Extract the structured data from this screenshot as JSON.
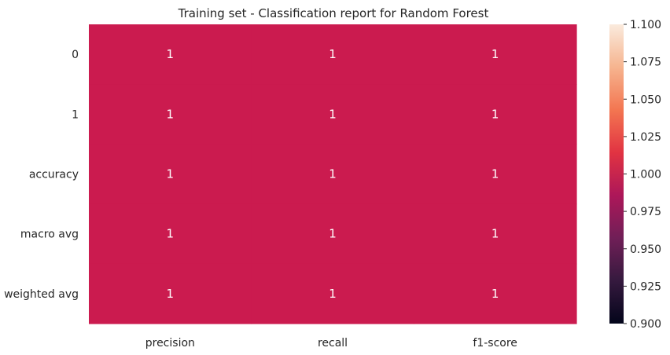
{
  "chart_data": {
    "type": "heatmap",
    "title": "Training set - Classification report for Random Forest",
    "xlabel": "",
    "ylabel": "",
    "rows": [
      "0",
      "1",
      "accuracy",
      "macro avg",
      "weighted avg"
    ],
    "columns": [
      "precision",
      "recall",
      "f1-score"
    ],
    "values": [
      [
        1,
        1,
        1
      ],
      [
        1,
        1,
        1
      ],
      [
        1,
        1,
        1
      ],
      [
        1,
        1,
        1
      ],
      [
        1,
        1,
        1
      ]
    ],
    "annotations": [
      [
        "1",
        "1",
        "1"
      ],
      [
        "1",
        "1",
        "1"
      ],
      [
        "1",
        "1",
        "1"
      ],
      [
        "1",
        "1",
        "1"
      ],
      [
        "1",
        "1",
        "1"
      ]
    ],
    "colorbar": {
      "colormap": "rocket",
      "vmin": 0.9,
      "vmax": 1.1,
      "ticks": [
        0.9,
        0.925,
        0.95,
        0.975,
        1.0,
        1.025,
        1.05,
        1.075,
        1.1
      ],
      "tick_labels": [
        "0.900",
        "0.925",
        "0.950",
        "0.975",
        "1.000",
        "1.025",
        "1.050",
        "1.075",
        "1.100"
      ],
      "stops": [
        "#03051a",
        "#35193e",
        "#701f57",
        "#ad1759",
        "#e13342",
        "#f37651",
        "#f6b48f",
        "#faebdd"
      ]
    },
    "cell_color": "#cb1b4f",
    "annotation_color": "#ffffff"
  }
}
